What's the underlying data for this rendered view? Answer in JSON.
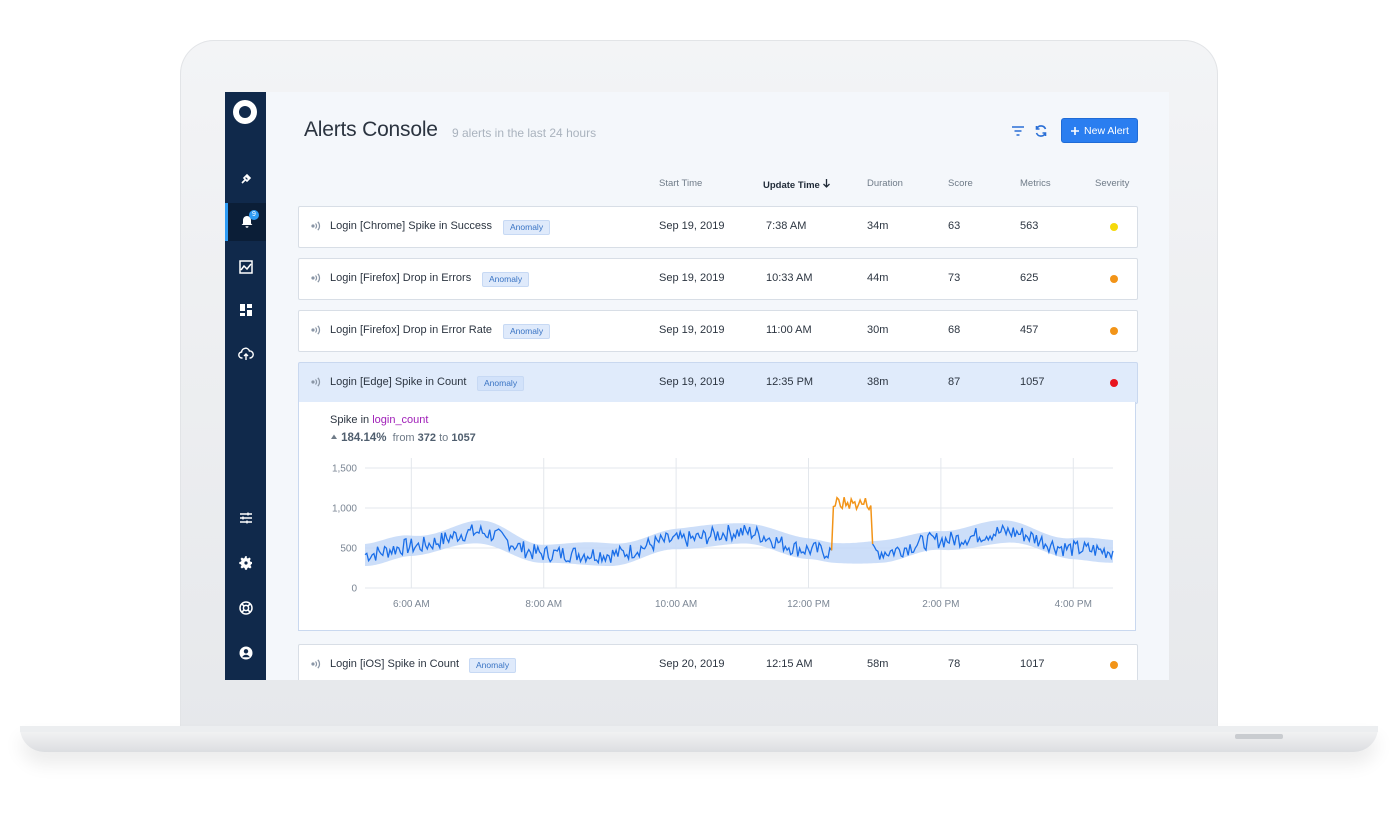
{
  "app": {
    "page_title": "Alerts Console",
    "page_subtitle": "9 alerts in the last 24 hours",
    "new_alert_label": "New Alert",
    "alerts_badge": "9"
  },
  "sidebar": {
    "items": [
      {
        "icon": "plug-icon"
      },
      {
        "icon": "bell-icon",
        "active": true
      },
      {
        "icon": "chart-icon"
      },
      {
        "icon": "dashboard-icon"
      },
      {
        "icon": "cloud-upload-icon"
      },
      {
        "icon": "sliders-icon"
      },
      {
        "icon": "gear-icon"
      },
      {
        "icon": "lifebuoy-icon"
      },
      {
        "icon": "account-icon"
      }
    ]
  },
  "table": {
    "headers": {
      "start_time": "Start Time",
      "update_time": "Update Time",
      "duration": "Duration",
      "score": "Score",
      "metrics": "Metrics",
      "severity": "Severity"
    },
    "rows": [
      {
        "name": "Login [Chrome] Spike in Success",
        "tag": "Anomaly",
        "start": "Sep 19, 2019",
        "update": "7:38 AM",
        "duration": "34m",
        "score": "63",
        "metrics": "563",
        "severity_color": "#f5d90a"
      },
      {
        "name": "Login [Firefox] Drop in Errors",
        "tag": "Anomaly",
        "start": "Sep 19, 2019",
        "update": "10:33 AM",
        "duration": "44m",
        "score": "73",
        "metrics": "625",
        "severity_color": "#f29418"
      },
      {
        "name": "Login [Firefox] Drop in Error Rate",
        "tag": "Anomaly",
        "start": "Sep 19, 2019",
        "update": "11:00 AM",
        "duration": "30m",
        "score": "68",
        "metrics": "457",
        "severity_color": "#f29418"
      },
      {
        "name": "Login [Edge] Spike in Count",
        "tag": "Anomaly",
        "start": "Sep 19, 2019",
        "update": "12:35 PM",
        "duration": "38m",
        "score": "87",
        "metrics": "1057",
        "severity_color": "#e8141e"
      },
      {
        "name": "Login [iOS] Spike in Count",
        "tag": "Anomaly",
        "start": "Sep 20, 2019",
        "update": "12:15 AM",
        "duration": "58m",
        "score": "78",
        "metrics": "1017",
        "severity_color": "#f29418"
      }
    ]
  },
  "detail": {
    "spike_prefix": "Spike in",
    "metric_name": "login_count",
    "change_pct": "184.14%",
    "from_label": "from",
    "from_value": "372",
    "to_label": "to",
    "to_value": "1057"
  },
  "chart_data": {
    "type": "line",
    "y_ticks": [
      "1,500",
      "1,000",
      "500",
      "0"
    ],
    "x_ticks": [
      "6:00 AM",
      "8:00 AM",
      "10:00 AM",
      "12:00 PM",
      "2:00 PM",
      "4:00 PM"
    ],
    "ylim": [
      0,
      1500
    ],
    "xlim_hours": [
      5.3,
      16.6
    ],
    "series": [
      {
        "color": "#1a6ee8",
        "kind": "observed",
        "baseline_peaks": [
          [
            5.3,
            420
          ],
          [
            6.0,
            520
          ],
          [
            7.0,
            700
          ],
          [
            8.0,
            430
          ],
          [
            9.0,
            420
          ],
          [
            10.0,
            600
          ],
          [
            11.0,
            700
          ],
          [
            12.0,
            480
          ],
          [
            12.4,
            450
          ],
          [
            13.1,
            450
          ],
          [
            14.0,
            600
          ],
          [
            15.0,
            700
          ],
          [
            16.0,
            490
          ],
          [
            16.6,
            460
          ]
        ]
      },
      {
        "color": "#f29418",
        "kind": "anomaly",
        "range_hours": [
          12.35,
          12.95
        ],
        "level": 1057
      },
      {
        "color": "#c3d8f8",
        "kind": "expected-band",
        "half_width": 130
      }
    ],
    "grid": true
  }
}
